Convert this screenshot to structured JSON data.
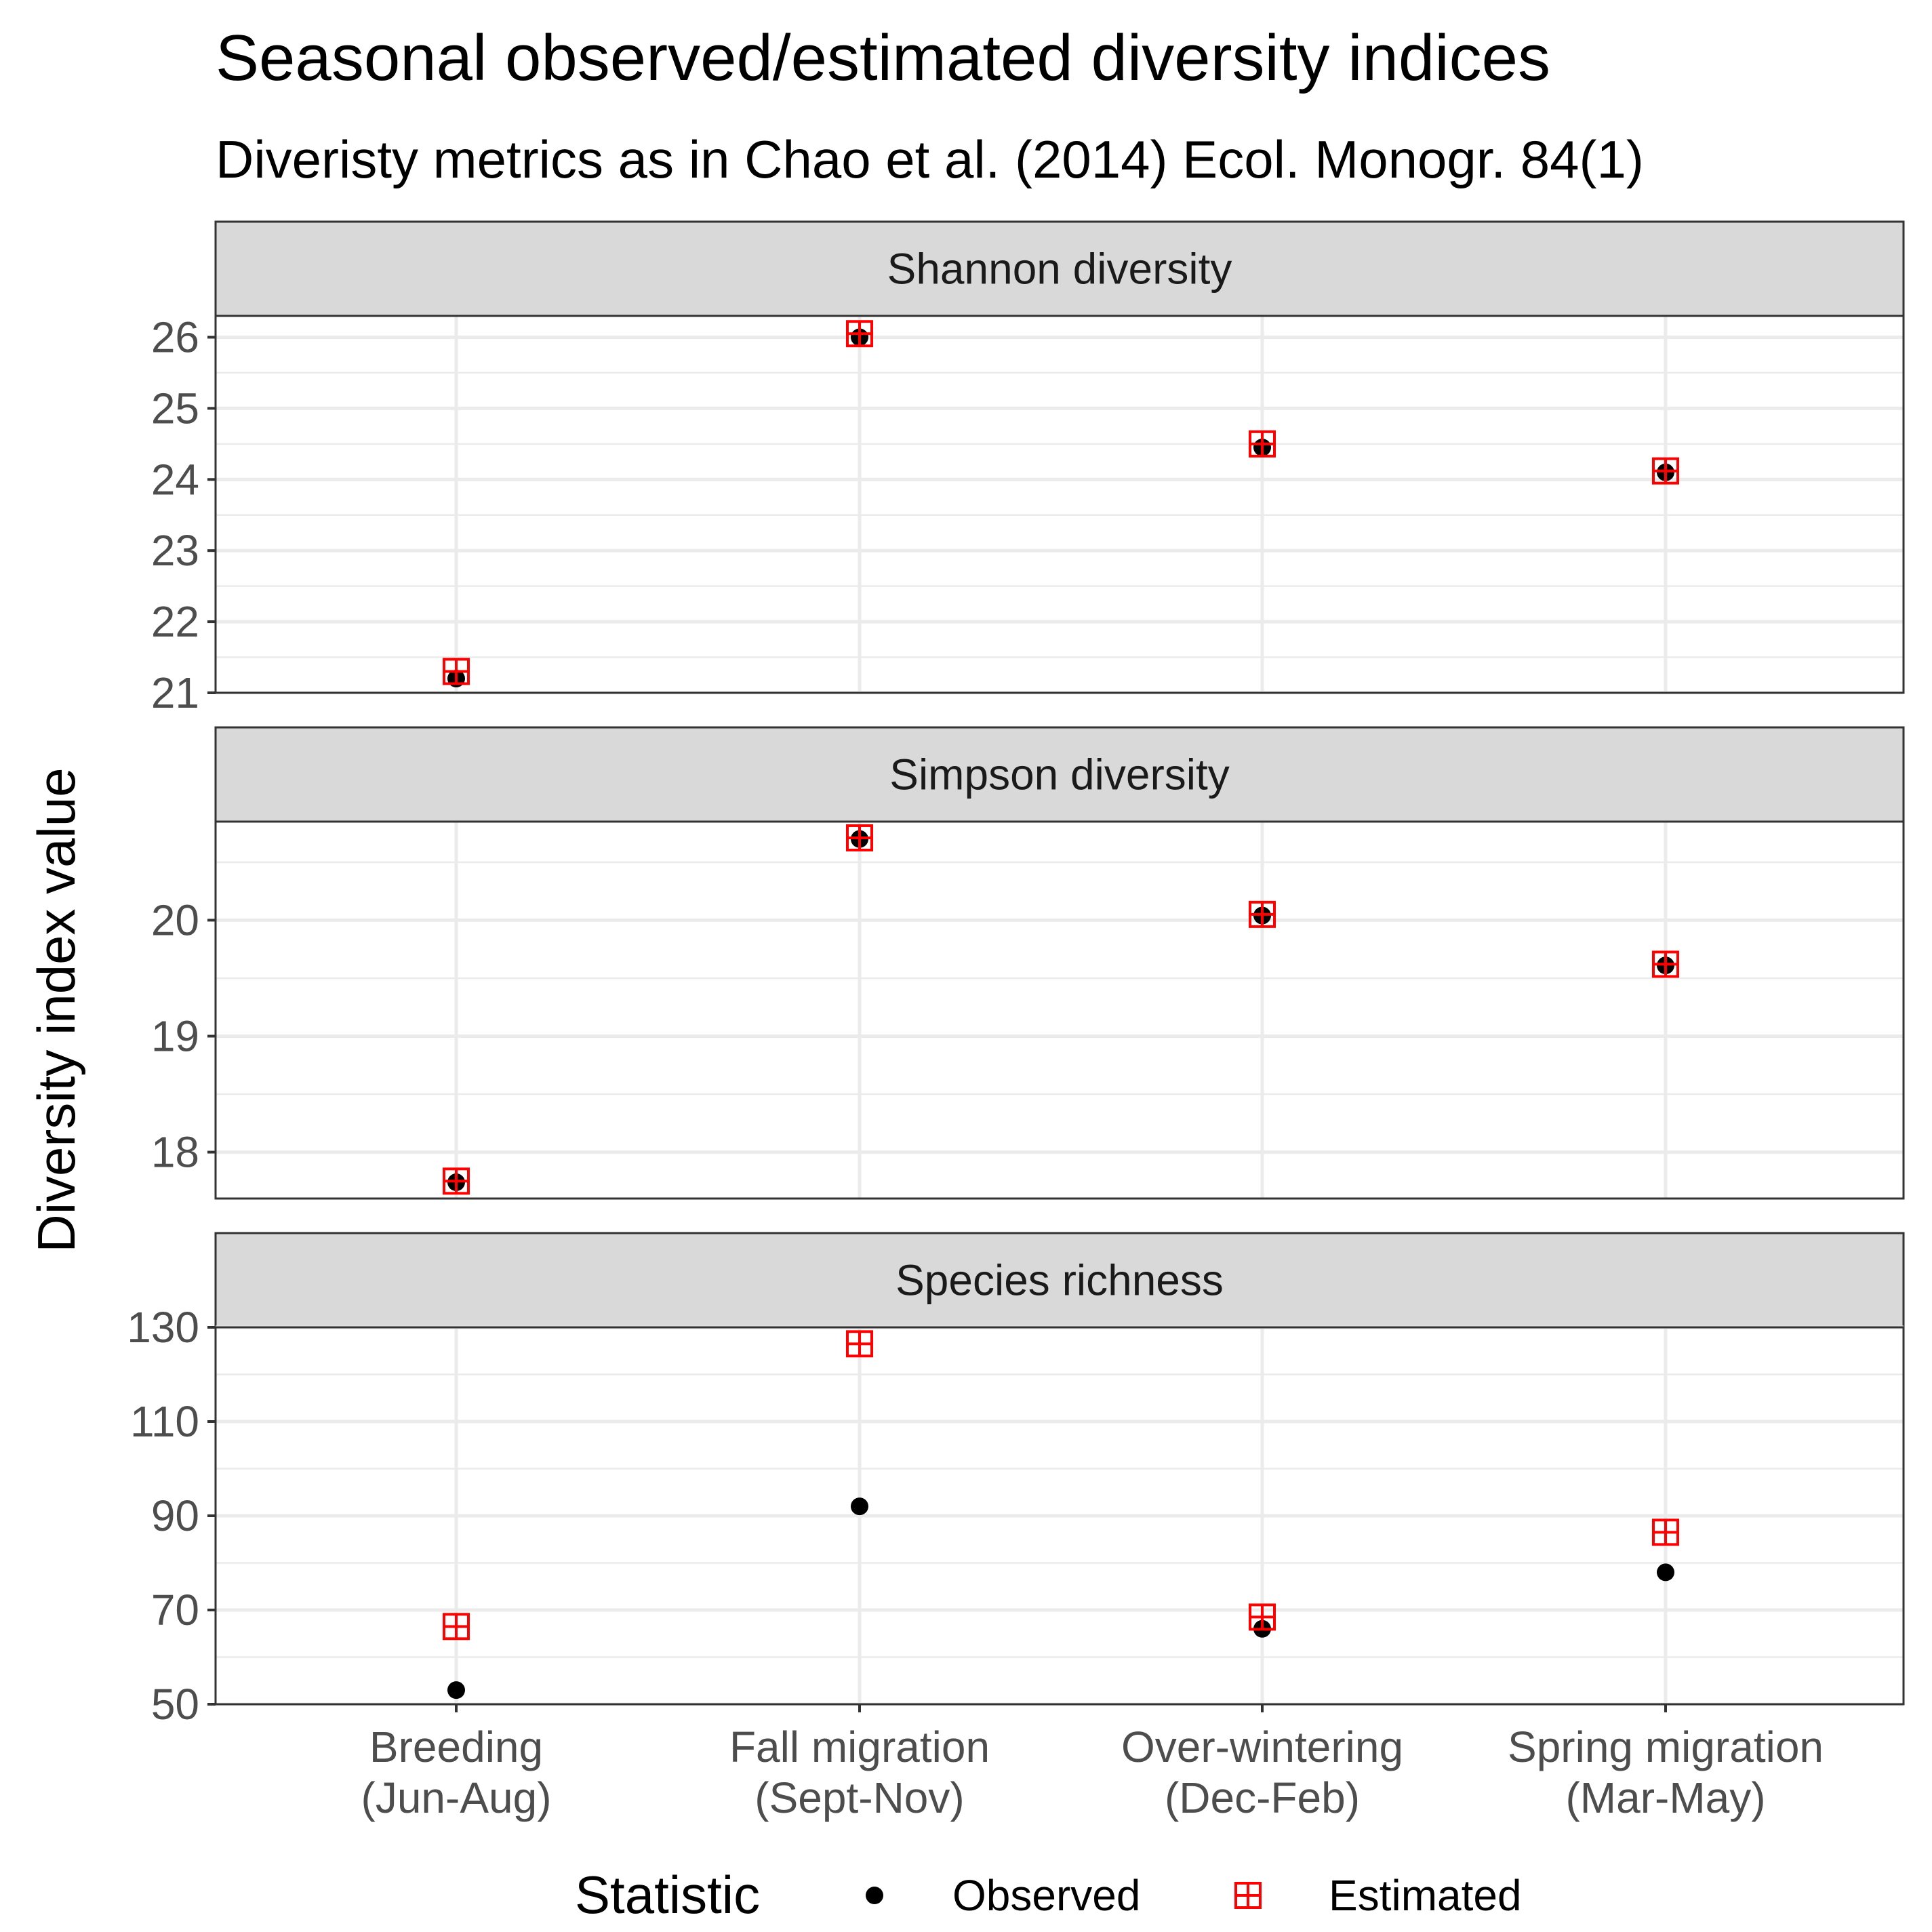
{
  "chart_data": {
    "type": "scatter",
    "title": "Seasonal observed/estimated diversity indices",
    "subtitle": "Diveristy metrics as in Chao et al. (2014) Ecol. Monogr. 84(1)",
    "ylabel": "Diversity index value",
    "xlabel": "",
    "categories": [
      [
        "Breeding",
        "(Jun-Aug)"
      ],
      [
        "Fall migration",
        "(Sept-Nov)"
      ],
      [
        "Over-wintering",
        "(Dec-Feb)"
      ],
      [
        "Spring migration",
        "(Mar-May)"
      ]
    ],
    "legend": {
      "title": "Statistic",
      "position": "bottom",
      "entries": [
        {
          "label": "Observed",
          "shape": "filled-circle",
          "color": "#000000"
        },
        {
          "label": "Estimated",
          "shape": "square-plus",
          "color": "#ff0000"
        }
      ]
    },
    "grid": true,
    "panels": [
      {
        "strip": "Shannon diversity",
        "ylim": [
          21,
          26.3
        ],
        "yticks": [
          21,
          22,
          23,
          24,
          25,
          26
        ],
        "series": [
          {
            "name": "Observed",
            "values": [
              21.2,
              26.0,
              24.45,
              24.1
            ]
          },
          {
            "name": "Estimated",
            "values": [
              21.3,
              26.05,
              24.5,
              24.12
            ]
          }
        ]
      },
      {
        "strip": "Simpson diversity",
        "ylim": [
          17.6,
          20.85
        ],
        "yticks": [
          18,
          19,
          20
        ],
        "series": [
          {
            "name": "Observed",
            "values": [
              17.74,
              20.7,
              20.04,
              19.61
            ]
          },
          {
            "name": "Estimated",
            "values": [
              17.75,
              20.71,
              20.05,
              19.62
            ]
          }
        ]
      },
      {
        "strip": "Species richness",
        "ylim": [
          50,
          130
        ],
        "yticks": [
          50,
          70,
          90,
          110,
          130
        ],
        "series": [
          {
            "name": "Observed",
            "values": [
              53,
              92,
              66,
              78
            ]
          },
          {
            "name": "Estimated",
            "values": [
              66.5,
              126.5,
              68.5,
              86.5
            ]
          }
        ]
      }
    ],
    "colors": {
      "observed": "#000000",
      "estimated": "#ff0000",
      "strip_fill": "#d9d9d9",
      "grid": "#ebebeb",
      "panel_border": "#333333",
      "tick_text": "#4d4d4d"
    }
  }
}
